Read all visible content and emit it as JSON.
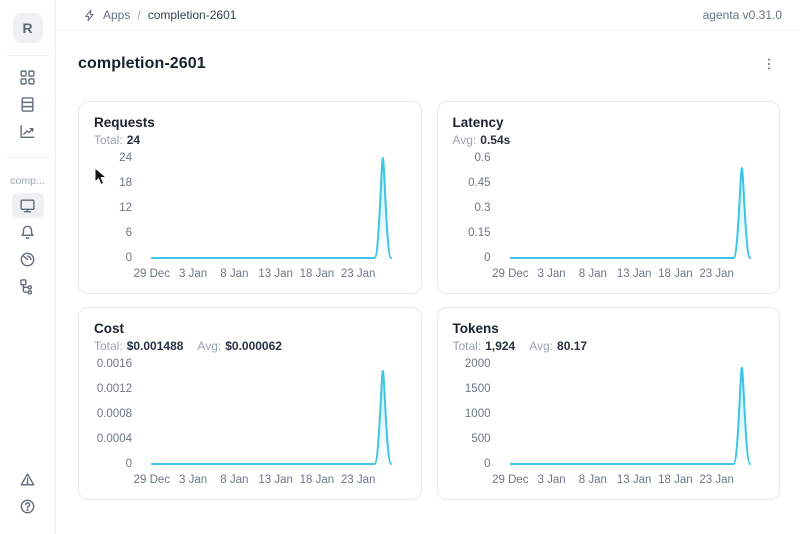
{
  "meta": {
    "accent_color": "#3cc5e4",
    "card_border_color": "#e5e8ec",
    "muted_text_color": "#98a2b3"
  },
  "app": {
    "version_label": "agenta v0.31.0"
  },
  "header": {
    "breadcrumb": {
      "icon": "lightning-bolt-icon",
      "section": "Apps",
      "separator": "/",
      "current": "completion-2601"
    }
  },
  "sidebar": {
    "logo_text": "R",
    "group_label": "comp...",
    "nav_top_icons": [
      "grid-icon",
      "table-rows-icon",
      "trend-chart-icon"
    ],
    "nav_app_icons": [
      "monitor-icon",
      "bell-icon",
      "gauge-icon",
      "tree-icon"
    ],
    "nav_bottom_icons": [
      "warning-triangle-icon",
      "question-circle-icon"
    ],
    "selected_icon": "monitor-icon"
  },
  "page": {
    "title": "completion-2601"
  },
  "charts": [
    {
      "title": "Requests",
      "stats": [
        {
          "label": "Total:",
          "value": "24"
        }
      ],
      "chart_data": {
        "type": "area",
        "title": "Requests",
        "line_color": "#3cc5e4",
        "x": [
          "29 Dec",
          "30 Dec",
          "31 Dec",
          "1 Jan",
          "2 Jan",
          "3 Jan",
          "4 Jan",
          "5 Jan",
          "6 Jan",
          "7 Jan",
          "8 Jan",
          "9 Jan",
          "10 Jan",
          "11 Jan",
          "12 Jan",
          "13 Jan",
          "14 Jan",
          "15 Jan",
          "16 Jan",
          "17 Jan",
          "18 Jan",
          "19 Jan",
          "20 Jan",
          "21 Jan",
          "22 Jan",
          "23 Jan",
          "24 Jan",
          "25 Jan",
          "26 Jan",
          "27 Jan"
        ],
        "values": [
          0,
          0,
          0,
          0,
          0,
          0,
          0,
          0,
          0,
          0,
          0,
          0,
          0,
          0,
          0,
          0,
          0,
          0,
          0,
          0,
          0,
          0,
          0,
          0,
          0,
          0,
          0,
          0,
          24,
          0
        ],
        "x_tick_labels": [
          "29 Dec",
          "3 Jan",
          "8 Jan",
          "13 Jan",
          "18 Jan",
          "23 Jan"
        ],
        "y_ticks": [
          "0",
          "6",
          "12",
          "18",
          "24"
        ],
        "ylim": [
          0,
          24
        ],
        "grid": false,
        "legend": false
      }
    },
    {
      "title": "Latency",
      "stats": [
        {
          "label": "Avg:",
          "value": "0.54s"
        }
      ],
      "chart_data": {
        "type": "area",
        "title": "Latency",
        "line_color": "#3cc5e4",
        "x": [
          "29 Dec",
          "30 Dec",
          "31 Dec",
          "1 Jan",
          "2 Jan",
          "3 Jan",
          "4 Jan",
          "5 Jan",
          "6 Jan",
          "7 Jan",
          "8 Jan",
          "9 Jan",
          "10 Jan",
          "11 Jan",
          "12 Jan",
          "13 Jan",
          "14 Jan",
          "15 Jan",
          "16 Jan",
          "17 Jan",
          "18 Jan",
          "19 Jan",
          "20 Jan",
          "21 Jan",
          "22 Jan",
          "23 Jan",
          "24 Jan",
          "25 Jan",
          "26 Jan",
          "27 Jan"
        ],
        "values": [
          0,
          0,
          0,
          0,
          0,
          0,
          0,
          0,
          0,
          0,
          0,
          0,
          0,
          0,
          0,
          0,
          0,
          0,
          0,
          0,
          0,
          0,
          0,
          0,
          0,
          0,
          0,
          0,
          0.54,
          0
        ],
        "x_tick_labels": [
          "29 Dec",
          "3 Jan",
          "8 Jan",
          "13 Jan",
          "18 Jan",
          "23 Jan"
        ],
        "y_ticks": [
          "0",
          "0.15",
          "0.3",
          "0.45",
          "0.6"
        ],
        "ylim": [
          0,
          0.6
        ],
        "grid": false,
        "legend": false
      }
    },
    {
      "title": "Cost",
      "stats": [
        {
          "label": "Total:",
          "value": "$0.001488"
        },
        {
          "label": "Avg:",
          "value": "$0.000062"
        }
      ],
      "chart_data": {
        "type": "area",
        "title": "Cost",
        "line_color": "#3cc5e4",
        "x": [
          "29 Dec",
          "30 Dec",
          "31 Dec",
          "1 Jan",
          "2 Jan",
          "3 Jan",
          "4 Jan",
          "5 Jan",
          "6 Jan",
          "7 Jan",
          "8 Jan",
          "9 Jan",
          "10 Jan",
          "11 Jan",
          "12 Jan",
          "13 Jan",
          "14 Jan",
          "15 Jan",
          "16 Jan",
          "17 Jan",
          "18 Jan",
          "19 Jan",
          "20 Jan",
          "21 Jan",
          "22 Jan",
          "23 Jan",
          "24 Jan",
          "25 Jan",
          "26 Jan",
          "27 Jan"
        ],
        "values": [
          0,
          0,
          0,
          0,
          0,
          0,
          0,
          0,
          0,
          0,
          0,
          0,
          0,
          0,
          0,
          0,
          0,
          0,
          0,
          0,
          0,
          0,
          0,
          0,
          0,
          0,
          0,
          0,
          0.001488,
          0
        ],
        "x_tick_labels": [
          "29 Dec",
          "3 Jan",
          "8 Jan",
          "13 Jan",
          "18 Jan",
          "23 Jan"
        ],
        "y_ticks": [
          "0",
          "0.0004",
          "0.0008",
          "0.0012",
          "0.0016"
        ],
        "ylim": [
          0,
          0.0016
        ],
        "grid": false,
        "legend": false
      }
    },
    {
      "title": "Tokens",
      "stats": [
        {
          "label": "Total:",
          "value": "1,924"
        },
        {
          "label": "Avg:",
          "value": "80.17"
        }
      ],
      "chart_data": {
        "type": "area",
        "title": "Tokens",
        "line_color": "#3cc5e4",
        "x": [
          "29 Dec",
          "30 Dec",
          "31 Dec",
          "1 Jan",
          "2 Jan",
          "3 Jan",
          "4 Jan",
          "5 Jan",
          "6 Jan",
          "7 Jan",
          "8 Jan",
          "9 Jan",
          "10 Jan",
          "11 Jan",
          "12 Jan",
          "13 Jan",
          "14 Jan",
          "15 Jan",
          "16 Jan",
          "17 Jan",
          "18 Jan",
          "19 Jan",
          "20 Jan",
          "21 Jan",
          "22 Jan",
          "23 Jan",
          "24 Jan",
          "25 Jan",
          "26 Jan",
          "27 Jan"
        ],
        "values": [
          0,
          0,
          0,
          0,
          0,
          0,
          0,
          0,
          0,
          0,
          0,
          0,
          0,
          0,
          0,
          0,
          0,
          0,
          0,
          0,
          0,
          0,
          0,
          0,
          0,
          0,
          0,
          0,
          1924,
          0
        ],
        "x_tick_labels": [
          "29 Dec",
          "3 Jan",
          "8 Jan",
          "13 Jan",
          "18 Jan",
          "23 Jan"
        ],
        "y_ticks": [
          "0",
          "500",
          "1000",
          "1500",
          "2000"
        ],
        "ylim": [
          0,
          2000
        ],
        "grid": false,
        "legend": false
      }
    }
  ]
}
